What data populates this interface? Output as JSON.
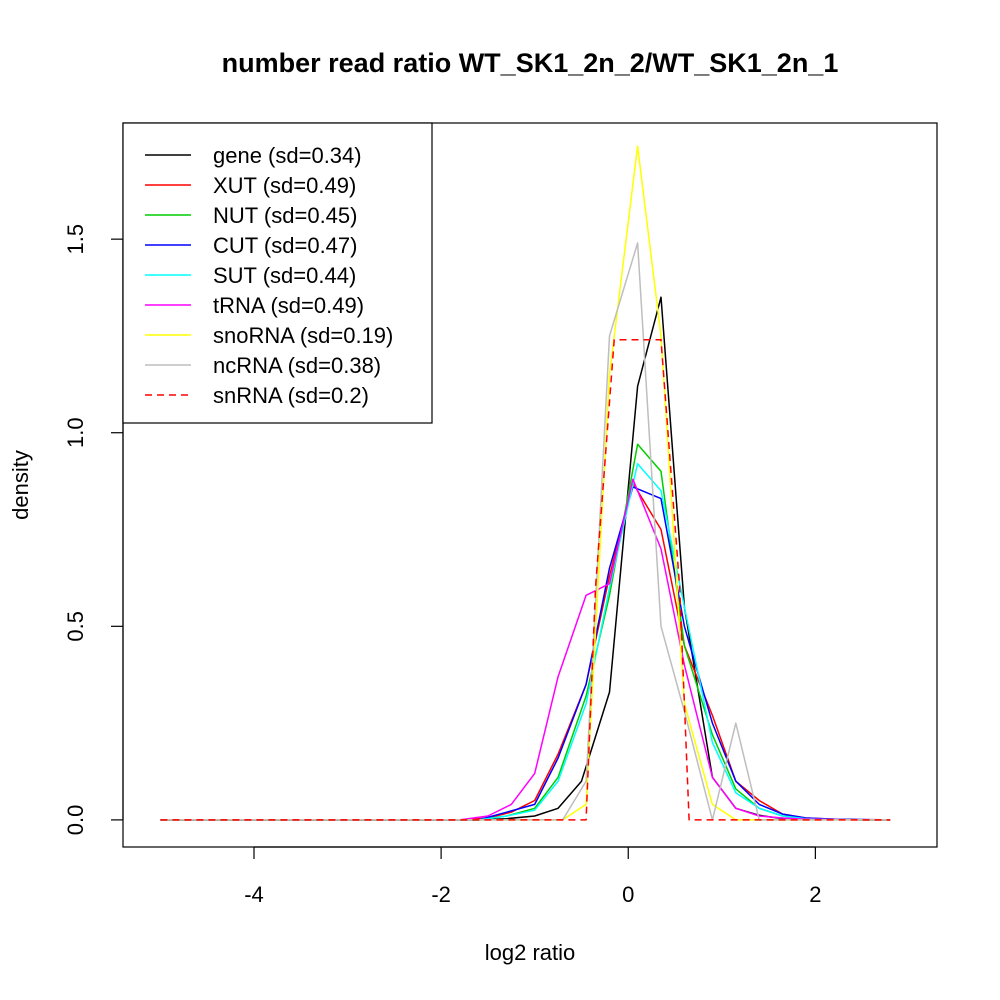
{
  "chart_data": {
    "type": "line",
    "title": "number read ratio WT_SK1_2n_2/WT_SK1_2n_1",
    "xlabel": "log2 ratio",
    "ylabel": "density",
    "xlim": [
      -5.4,
      3.3
    ],
    "ylim": [
      -0.07,
      1.8
    ],
    "xticks": [
      -4,
      -2,
      0,
      2
    ],
    "xtick_labels": [
      "-4",
      "-2",
      "0",
      "2"
    ],
    "yticks": [
      0.0,
      0.5,
      1.0,
      1.5
    ],
    "ytick_labels": [
      "0.0",
      "0.5",
      "1.0",
      "1.5"
    ],
    "grid": false,
    "legend_position": "top-left",
    "series": [
      {
        "name": "gene (sd=0.34)",
        "color": "#000000",
        "dash": "solid",
        "x": [
          -5.0,
          -1.6,
          -1.3,
          -1.0,
          -0.75,
          -0.5,
          -0.2,
          0.1,
          0.35,
          0.6,
          0.9,
          1.15,
          1.4,
          1.6,
          1.9,
          2.2,
          2.5,
          2.8
        ],
        "y": [
          0,
          0,
          0.003,
          0.01,
          0.03,
          0.1,
          0.33,
          1.12,
          1.35,
          0.55,
          0.11,
          0.03,
          0.012,
          0.005,
          0.002,
          0.001,
          0,
          0
        ]
      },
      {
        "name": "XUT (sd=0.49)",
        "color": "#ff0000",
        "dash": "solid",
        "x": [
          -5.0,
          -1.8,
          -1.5,
          -1.25,
          -1.0,
          -0.75,
          -0.45,
          -0.2,
          0.05,
          0.35,
          0.6,
          0.9,
          1.15,
          1.4,
          1.65,
          1.9,
          2.2,
          2.5,
          2.8
        ],
        "y": [
          0,
          0,
          0.005,
          0.02,
          0.05,
          0.17,
          0.35,
          0.63,
          0.87,
          0.75,
          0.45,
          0.27,
          0.1,
          0.05,
          0.015,
          0.005,
          0.002,
          0,
          0
        ]
      },
      {
        "name": "NUT (sd=0.45)",
        "color": "#00cd00",
        "dash": "solid",
        "x": [
          -5.0,
          -1.6,
          -1.3,
          -1.0,
          -0.75,
          -0.45,
          -0.2,
          0.1,
          0.35,
          0.6,
          0.9,
          1.15,
          1.4,
          1.65,
          1.9,
          2.2,
          2.5,
          2.8
        ],
        "y": [
          0,
          0,
          0.01,
          0.03,
          0.11,
          0.32,
          0.58,
          0.97,
          0.9,
          0.45,
          0.22,
          0.08,
          0.03,
          0.01,
          0.004,
          0.001,
          0,
          0
        ]
      },
      {
        "name": "CUT (sd=0.47)",
        "color": "#0000ff",
        "dash": "solid",
        "x": [
          -5.0,
          -1.6,
          -1.3,
          -1.0,
          -0.75,
          -0.45,
          -0.2,
          0.05,
          0.35,
          0.6,
          0.9,
          1.15,
          1.4,
          1.65,
          1.9,
          2.2,
          2.5,
          2.8
        ],
        "y": [
          0,
          0,
          0.02,
          0.04,
          0.16,
          0.35,
          0.65,
          0.86,
          0.83,
          0.5,
          0.25,
          0.1,
          0.04,
          0.015,
          0.005,
          0.002,
          0.001,
          0
        ]
      },
      {
        "name": "SUT (sd=0.44)",
        "color": "#00ffff",
        "dash": "solid",
        "x": [
          -5.0,
          -1.6,
          -1.3,
          -1.0,
          -0.75,
          -0.45,
          -0.2,
          0.1,
          0.35,
          0.6,
          0.9,
          1.15,
          1.4,
          1.65,
          1.9,
          2.2,
          2.5,
          2.8
        ],
        "y": [
          0,
          0,
          0.01,
          0.025,
          0.1,
          0.3,
          0.6,
          0.92,
          0.85,
          0.55,
          0.2,
          0.07,
          0.03,
          0.01,
          0.003,
          0.001,
          0,
          0
        ]
      },
      {
        "name": "tRNA (sd=0.49)",
        "color": "#ff00ff",
        "dash": "solid",
        "x": [
          -5.0,
          -1.8,
          -1.5,
          -1.25,
          -1.0,
          -0.75,
          -0.45,
          -0.2,
          0.05,
          0.35,
          0.6,
          0.9,
          1.15,
          1.4,
          1.65,
          1.9,
          2.2,
          2.5,
          2.8
        ],
        "y": [
          0,
          0,
          0.01,
          0.04,
          0.12,
          0.37,
          0.58,
          0.61,
          0.88,
          0.7,
          0.4,
          0.11,
          0.03,
          0.01,
          0.005,
          0.002,
          0.001,
          0,
          0
        ]
      },
      {
        "name": "snoRNA (sd=0.19)",
        "color": "#ffff00",
        "dash": "solid",
        "x": [
          -5.0,
          -0.7,
          -0.45,
          -0.2,
          0.1,
          0.35,
          0.6,
          0.9,
          1.15,
          1.4,
          1.65,
          1.9,
          2.2,
          2.5,
          2.8
        ],
        "y": [
          0,
          0,
          0.04,
          1.15,
          1.74,
          1.25,
          0.3,
          0.04,
          0,
          0,
          0,
          0,
          0,
          0,
          0
        ]
      },
      {
        "name": "ncRNA (sd=0.38)",
        "color": "#bebebe",
        "dash": "solid",
        "x": [
          -5.0,
          -0.7,
          -0.45,
          -0.2,
          0.1,
          0.35,
          0.6,
          0.9,
          1.15,
          1.4,
          1.65,
          1.9,
          2.2,
          2.5,
          2.8
        ],
        "y": [
          0,
          0,
          0.1,
          1.25,
          1.49,
          0.5,
          0.28,
          0.0,
          0.25,
          0.0,
          0,
          0,
          0,
          0,
          0
        ]
      },
      {
        "name": "snRNA (sd=0.2)",
        "color": "#ff0000",
        "dash": "dashed",
        "x": [
          -5.0,
          -0.45,
          -0.35,
          -0.15,
          0.35,
          0.55,
          0.65,
          2.8
        ],
        "y": [
          0,
          0,
          0.6,
          1.24,
          1.24,
          0.6,
          0,
          0
        ]
      }
    ]
  }
}
